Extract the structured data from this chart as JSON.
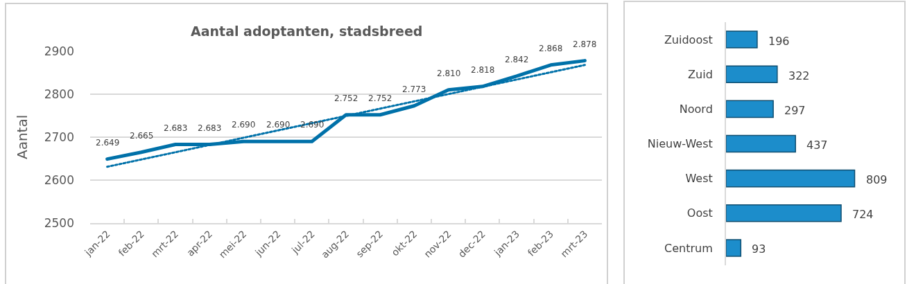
{
  "chart_data": [
    {
      "type": "line",
      "title": "Aantal adoptanten, stadsbreed",
      "ylabel": "Aantal",
      "categories": [
        "jan-22",
        "feb-22",
        "mrt-22",
        "apr-22",
        "mei-22",
        "jun-22",
        "jul-22",
        "aug-22",
        "sep-22",
        "okt-22",
        "nov-22",
        "dec-22",
        "jan-23",
        "feb-23",
        "mrt-23"
      ],
      "ylim": [
        2500,
        2900
      ],
      "yticks": [
        2500,
        2600,
        2700,
        2800,
        2900
      ],
      "grid": "y",
      "series": [
        {
          "color": "#0071a9",
          "line_style": "solid",
          "values": [
            2649,
            2665,
            2683,
            2683,
            2690,
            2690,
            2690,
            2752,
            2752,
            2773,
            2810,
            2818,
            2842,
            2868,
            2878
          ],
          "value_labels": [
            "2.649",
            "2.665",
            "2.683",
            "2.683",
            "2.690",
            "2.690",
            "2.690",
            "2.752",
            "2.752",
            "2.773",
            "2.810",
            "2.818",
            "2.842",
            "2.868",
            "2.878"
          ]
        },
        {
          "type": "line",
          "color": "#0071a9",
          "line_style": "dotted",
          "x": [
            "jan-22",
            "mrt-23"
          ],
          "values": [
            2631,
            2868
          ]
        }
      ]
    },
    {
      "type": "bar",
      "orientation": "horizontal",
      "categories": [
        "Zuidoost",
        "Zuid",
        "Noord",
        "Nieuw-West",
        "West",
        "Oost",
        "Centrum"
      ],
      "values": [
        196,
        322,
        297,
        437,
        809,
        724,
        93
      ],
      "color": "#1c8dcb",
      "data_labels": true,
      "tick_labels": "y"
    }
  ]
}
